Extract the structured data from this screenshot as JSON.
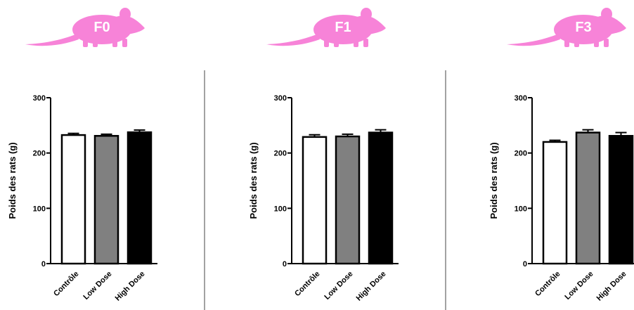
{
  "chart_data": [
    {
      "type": "bar",
      "title": "F0",
      "ylabel": "Poids des rats (g)",
      "categories": [
        "Contrôle",
        "Low Dose",
        "High Dose"
      ],
      "values": [
        232.5,
        231,
        237.5
      ],
      "errors": [
        3,
        3,
        4
      ],
      "colors": [
        "#ffffff",
        "#808080",
        "#000000"
      ],
      "ylim": [
        0,
        300
      ],
      "yticks": [
        0,
        100,
        200,
        300
      ],
      "icon_color": "#f783d8"
    },
    {
      "type": "bar",
      "title": "F1",
      "ylabel": "Poids des rats (g)",
      "categories": [
        "Contrôle",
        "Low Dose",
        "High Dose"
      ],
      "values": [
        229,
        230,
        237
      ],
      "errors": [
        4,
        4,
        5
      ],
      "colors": [
        "#ffffff",
        "#808080",
        "#000000"
      ],
      "ylim": [
        0,
        300
      ],
      "yticks": [
        0,
        100,
        200,
        300
      ],
      "icon_color": "#f783d8"
    },
    {
      "type": "bar",
      "title": "F3",
      "ylabel": "Poids des rats (g)",
      "categories": [
        "Contrôle",
        "Low Dose",
        "High Dose"
      ],
      "values": [
        220,
        237,
        231
      ],
      "errors": [
        3,
        5,
        6
      ],
      "colors": [
        "#ffffff",
        "#808080",
        "#000000"
      ],
      "ylim": [
        0,
        300
      ],
      "yticks": [
        0,
        100,
        200,
        300
      ],
      "icon_color": "#f783d8"
    }
  ]
}
